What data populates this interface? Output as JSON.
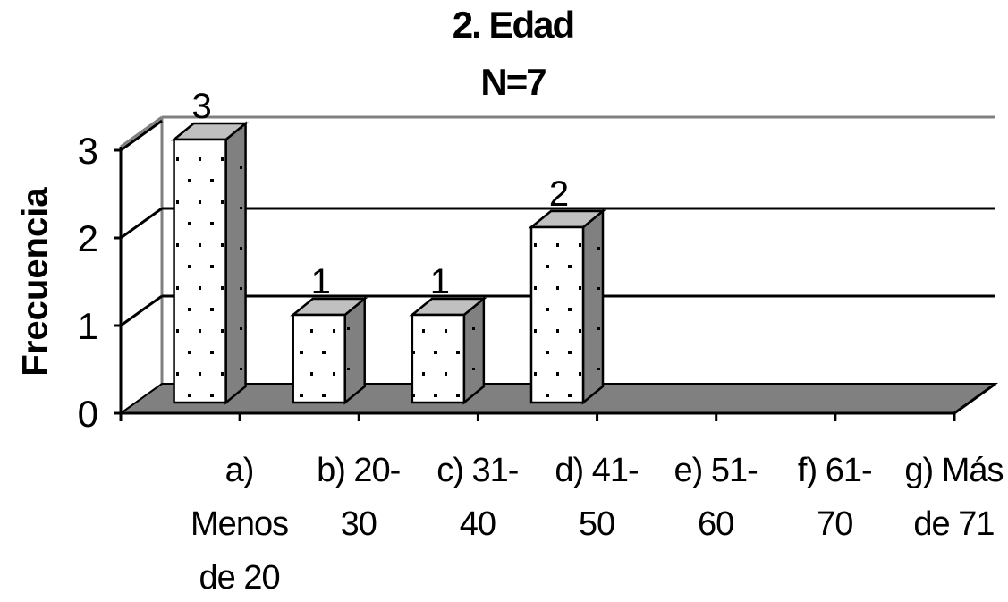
{
  "chart_data": {
    "type": "bar",
    "title": "2. Edad",
    "subtitle": "N=7",
    "ylabel": "Frecuencia",
    "xlabel": "",
    "categories": [
      [
        "a)",
        "Menos",
        "de 20"
      ],
      [
        "b)  20-",
        "30"
      ],
      [
        "c)  31-",
        "40"
      ],
      [
        "d) 41-",
        "50"
      ],
      [
        "e)  51-",
        "60"
      ],
      [
        "f)  61-",
        "70"
      ],
      [
        "g)  Más",
        "de 71"
      ]
    ],
    "values": [
      3,
      1,
      1,
      2,
      0,
      0,
      0
    ],
    "data_labels": [
      "3",
      "1",
      "1",
      "2",
      "",
      "",
      ""
    ],
    "yticks": [
      "0",
      "1",
      "2",
      "3"
    ],
    "ylim": [
      0,
      3
    ],
    "grid": true,
    "style": "3d-column",
    "colors": {
      "bar_front": "#ffffff",
      "bar_side": "#808080",
      "bar_top": "#c0c0c0",
      "floor": "#808080",
      "wall_line": "#808080",
      "gridline": "#000000"
    }
  }
}
